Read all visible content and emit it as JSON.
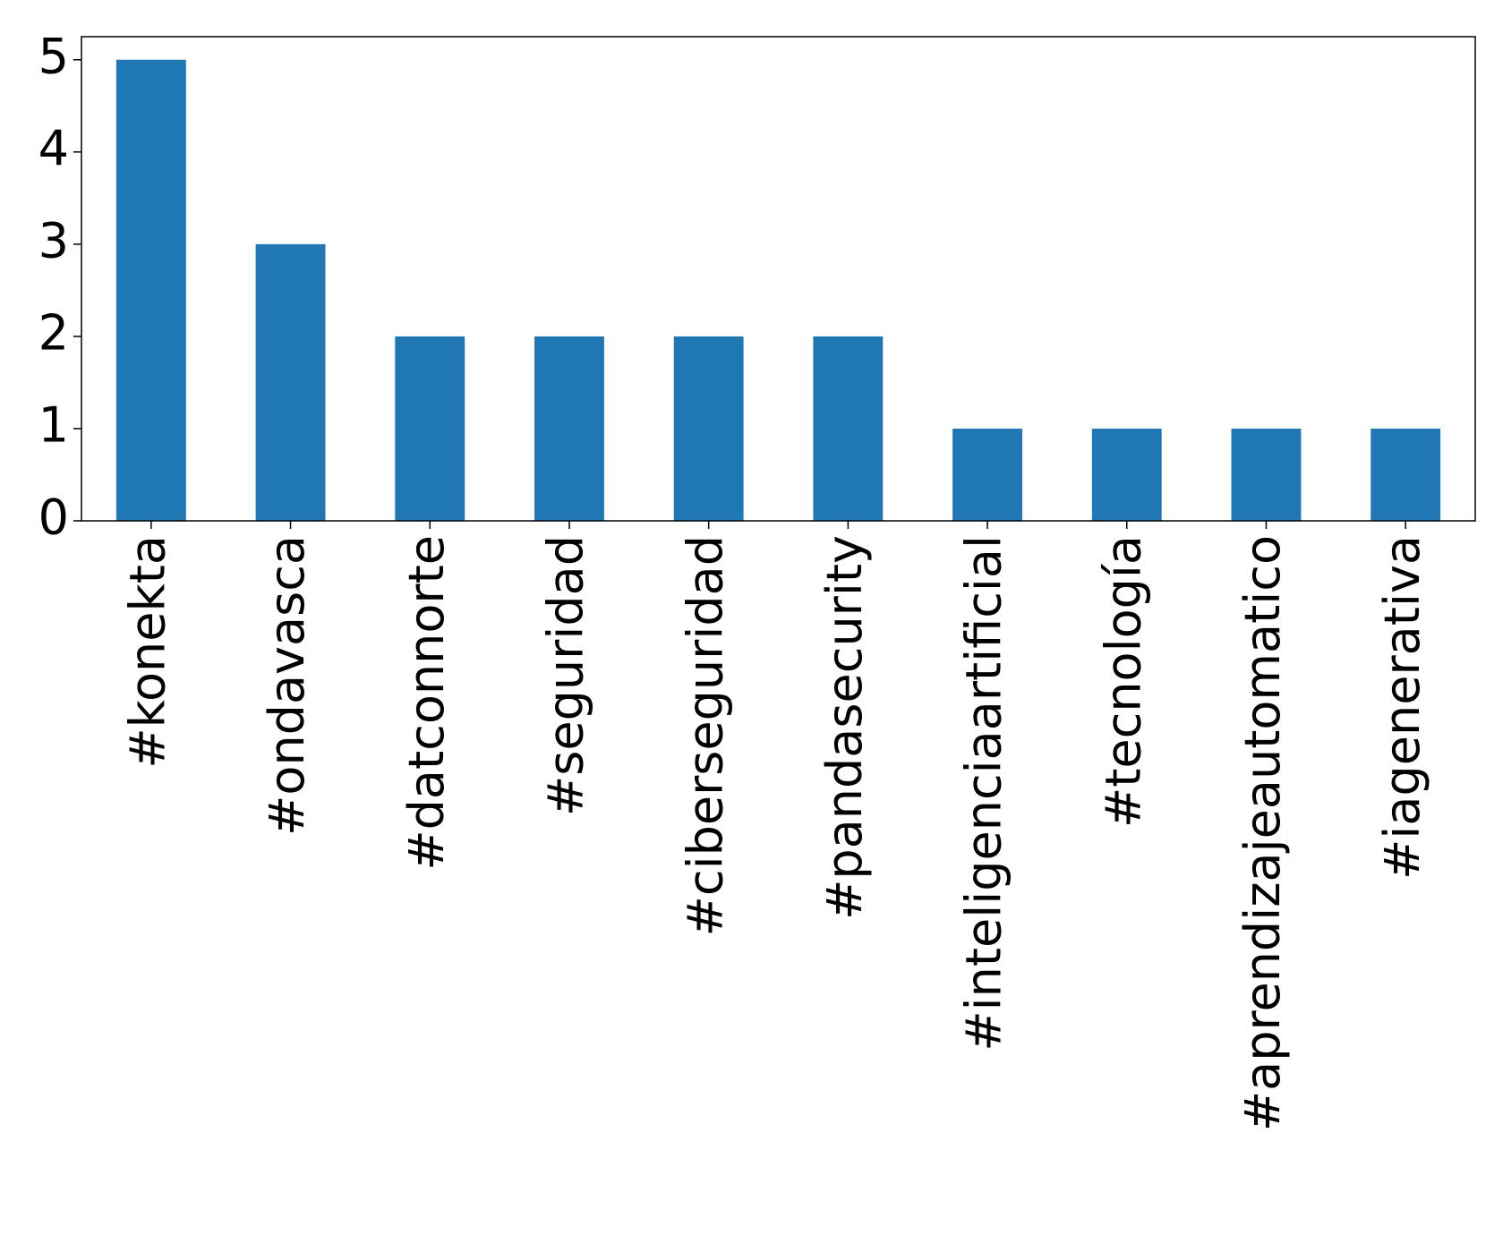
{
  "chart_data": {
    "type": "bar",
    "categories": [
      "#konekta",
      "#ondavasca",
      "#datconnorte",
      "#seguridad",
      "#ciberseguridad",
      "#pandasecurity",
      "#inteligenciaartificial",
      "#tecnología",
      "#aprendizajeautomatico",
      "#iagenerativa"
    ],
    "values": [
      5,
      3,
      2,
      2,
      2,
      2,
      1,
      1,
      1,
      1
    ],
    "color": "#1f77b4",
    "ylim": [
      0,
      5.25
    ],
    "yticks": [
      0,
      1,
      2,
      3,
      4,
      5
    ],
    "grid": false
  }
}
